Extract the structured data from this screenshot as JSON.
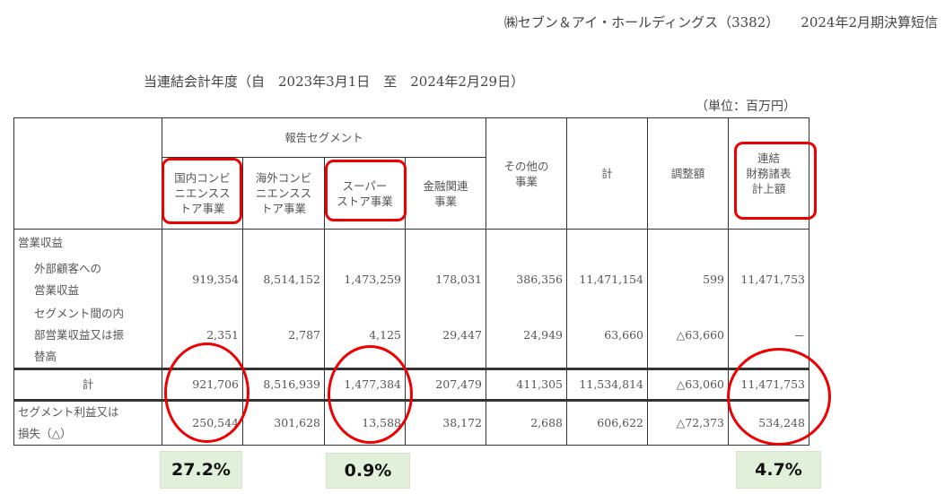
{
  "header": {
    "company": "㈱セブン＆アイ・ホールディングス（3382）",
    "report": "2024年2月期決算短信"
  },
  "period": "当連結会計年度（自　2023年3月1日　至　2024年2月29日）",
  "unit": "（単位：百万円）",
  "table": {
    "group_header": "報告セグメント",
    "columns": [
      "国内コンビニエンスストア事業",
      "海外コンビニエンスストア事業",
      "スーパーストア事業",
      "金融関連事業",
      "その他の事業",
      "計",
      "調整額",
      "連結財務諸表計上額"
    ],
    "column_lines": [
      [
        "国内コンビ",
        "ニエンスス",
        "トア事業"
      ],
      [
        "海外コンビ",
        "ニエンスス",
        "トア事業"
      ],
      [
        "スーパー",
        "ストア事業"
      ],
      [
        "金融関連",
        "事業"
      ],
      [
        "その他の",
        "事業"
      ],
      [
        "計"
      ],
      [
        "調整額"
      ],
      [
        "連結",
        "財務諸表",
        "計上額"
      ]
    ],
    "section_label": "営業収益",
    "rows": [
      {
        "label_lines": [
          "外部顧客への",
          "営業収益"
        ],
        "values": [
          "919,354",
          "8,514,152",
          "1,473,259",
          "178,031",
          "386,356",
          "11,471,154",
          "599",
          "11,471,753"
        ]
      },
      {
        "label_lines": [
          "セグメント間の内",
          "部営業収益又は振",
          "替高"
        ],
        "values": [
          "2,351",
          "2,787",
          "4,125",
          "29,447",
          "24,949",
          "63,660",
          "△63,660",
          "－"
        ]
      },
      {
        "label_lines": [
          "計"
        ],
        "values": [
          "921,706",
          "8,516,939",
          "1,477,384",
          "207,479",
          "411,305",
          "11,534,814",
          "△63,060",
          "11,471,753"
        ]
      },
      {
        "label_lines": [
          "セグメント利益又は",
          "損失（△）"
        ],
        "values": [
          "250,544",
          "301,628",
          "13,588",
          "38,172",
          "2,688",
          "606,622",
          "△72,373",
          "534,248"
        ]
      }
    ]
  },
  "annotations": {
    "margins": [
      "27.2%",
      "0.9%",
      "4.7%"
    ],
    "highlight_color": "#e00000",
    "box_color": "#e2efda"
  }
}
